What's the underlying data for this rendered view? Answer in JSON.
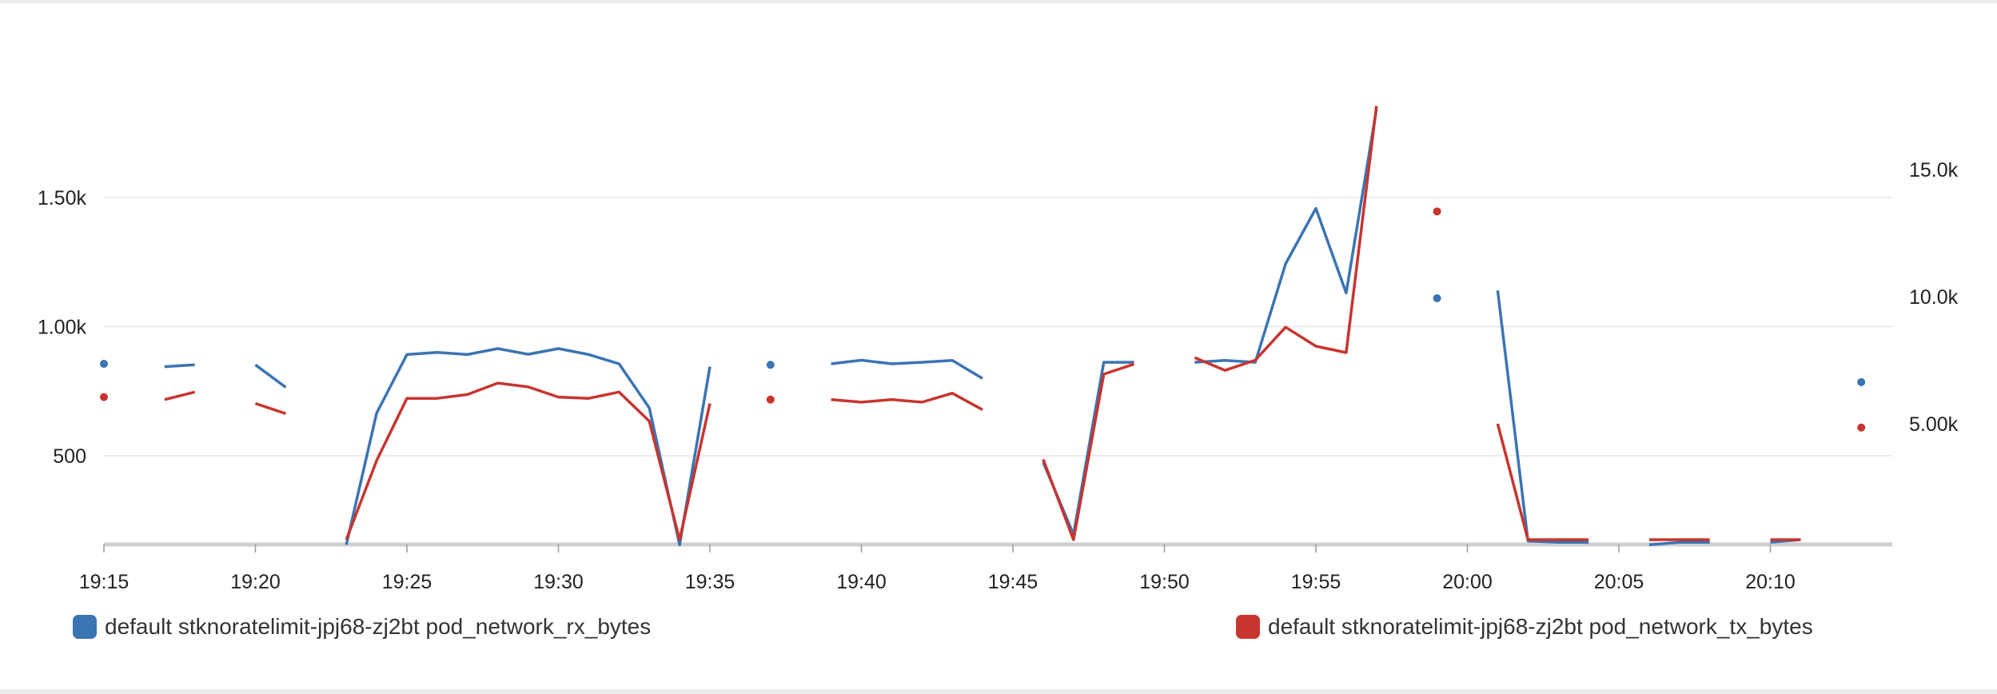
{
  "chart_data": {
    "type": "line",
    "title": "",
    "xlabel": "",
    "ylabel": "",
    "grid": true,
    "legend_placement": "bottom",
    "x_ticks": [
      "19:15",
      "19:20",
      "19:25",
      "19:30",
      "19:35",
      "19:40",
      "19:45",
      "19:50",
      "19:55",
      "20:00",
      "20:05",
      "20:10"
    ],
    "y_left_ticks": [
      "500",
      "1.00k",
      "1.50k"
    ],
    "y_right_ticks": [
      "5.00k",
      "10.0k",
      "15.0k"
    ],
    "y_left_range": [
      155,
      1880
    ],
    "y_right_range": [
      440,
      17700
    ],
    "series": [
      {
        "name": "default stknoratelimit-jpj68-zj2bt pod_network_rx_bytes",
        "axis": "left",
        "color": "#3b74b3",
        "points": [
          [
            "19:15",
            856
          ],
          [
            [
              "19:16"
            ],
            null
          ],
          [
            "19:17",
            845
          ],
          [
            "19:18",
            852
          ],
          [
            "19:19",
            null
          ],
          [
            "19:20",
            852
          ],
          [
            "19:21",
            765
          ],
          [
            "19:22",
            null
          ],
          [
            "19:23",
            155
          ],
          [
            "19:24",
            665
          ],
          [
            "19:25",
            892
          ],
          [
            "19:26",
            900
          ],
          [
            "19:27",
            892
          ],
          [
            "19:28",
            915
          ],
          [
            "19:29",
            893
          ],
          [
            "19:30",
            915
          ],
          [
            "19:31",
            892
          ],
          [
            "19:32",
            856
          ],
          [
            "19:33",
            685
          ],
          [
            "19:34",
            155
          ],
          [
            "19:35",
            845
          ],
          [
            "19:36",
            null
          ],
          [
            "19:37",
            852
          ],
          [
            "19:38",
            null
          ],
          [
            "19:39",
            856
          ],
          [
            "19:40",
            870
          ],
          [
            "19:41",
            856
          ],
          [
            "19:42",
            862
          ],
          [
            "19:43",
            869
          ],
          [
            "19:44",
            799
          ],
          [
            "19:45",
            null
          ],
          [
            "19:46",
            475
          ],
          [
            "19:47",
            195
          ],
          [
            "19:48",
            862
          ],
          [
            "19:49",
            862
          ],
          [
            "19:50",
            null
          ],
          [
            "19:51",
            862
          ],
          [
            "19:52",
            869
          ],
          [
            "19:53",
            862
          ],
          [
            "19:54",
            1243
          ],
          [
            "19:55",
            1458
          ],
          [
            "19:56",
            1130
          ],
          [
            "19:57",
            1842
          ],
          [
            "19:58",
            null
          ],
          [
            "19:59",
            1110
          ],
          [
            "20:00",
            null
          ],
          [
            "20:01",
            1140
          ],
          [
            "20:02",
            170
          ],
          [
            "20:03",
            165
          ],
          [
            "20:04",
            165
          ],
          [
            "20:05",
            null
          ],
          [
            "20:06",
            155
          ],
          [
            "20:07",
            165
          ],
          [
            "20:08",
            165
          ],
          [
            "20:09",
            null
          ],
          [
            "20:10",
            165
          ],
          [
            "20:11",
            175
          ],
          [
            "20:12",
            null
          ],
          [
            "20:13",
            785
          ]
        ]
      },
      {
        "name": "default stknoratelimit-jpj68-zj2bt pod_network_tx_bytes",
        "axis": "right",
        "color": "#c7352f",
        "points": [
          [
            "19:15",
            6050
          ],
          [
            "19:16",
            null
          ],
          [
            "19:17",
            5950
          ],
          [
            "19:18",
            6250
          ],
          [
            "19:19",
            null
          ],
          [
            "19:20",
            5800
          ],
          [
            "19:21",
            5400
          ],
          [
            "19:22",
            null
          ],
          [
            "19:23",
            440
          ],
          [
            "19:24",
            3550
          ],
          [
            "19:25",
            6000
          ],
          [
            "19:26",
            6000
          ],
          [
            "19:27",
            6150
          ],
          [
            "19:28",
            6600
          ],
          [
            "19:29",
            6450
          ],
          [
            "19:30",
            6050
          ],
          [
            "19:31",
            6000
          ],
          [
            "19:32",
            6250
          ],
          [
            "19:33",
            5100
          ],
          [
            "19:34",
            440
          ],
          [
            "19:35",
            5800
          ],
          [
            "19:36",
            null
          ],
          [
            "19:37",
            5950
          ],
          [
            "19:38",
            null
          ],
          [
            "19:39",
            5950
          ],
          [
            "19:40",
            5850
          ],
          [
            "19:41",
            5950
          ],
          [
            "19:42",
            5850
          ],
          [
            "19:43",
            6200
          ],
          [
            "19:44",
            5550
          ],
          [
            "19:45",
            null
          ],
          [
            "19:46",
            3600
          ],
          [
            "19:47",
            440
          ],
          [
            "19:48",
            6950
          ],
          [
            "19:49",
            7350
          ],
          [
            "19:50",
            null
          ],
          [
            "19:51",
            7600
          ],
          [
            "19:52",
            7100
          ],
          [
            "19:53",
            7500
          ],
          [
            "19:54",
            8800
          ],
          [
            "19:55",
            8050
          ],
          [
            "19:56",
            7800
          ],
          [
            "19:57",
            17500
          ],
          [
            "19:58",
            null
          ],
          [
            "19:59",
            13350
          ],
          [
            "20:00",
            null
          ],
          [
            "20:01",
            5000
          ],
          [
            "20:02",
            440
          ],
          [
            "20:03",
            440
          ],
          [
            "20:04",
            440
          ],
          [
            "20:05",
            null
          ],
          [
            "20:06",
            440
          ],
          [
            "20:07",
            440
          ],
          [
            "20:08",
            440
          ],
          [
            "20:09",
            null
          ],
          [
            "20:10",
            440
          ],
          [
            "20:11",
            440
          ],
          [
            "20:12",
            null
          ],
          [
            "20:13",
            4850
          ]
        ]
      }
    ]
  },
  "legend": {
    "rx_label": "default stknoratelimit-jpj68-zj2bt pod_network_rx_bytes",
    "rx_color": "#3b74b3",
    "tx_label": "default stknoratelimit-jpj68-zj2bt pod_network_tx_bytes",
    "tx_color": "#c7352f"
  }
}
